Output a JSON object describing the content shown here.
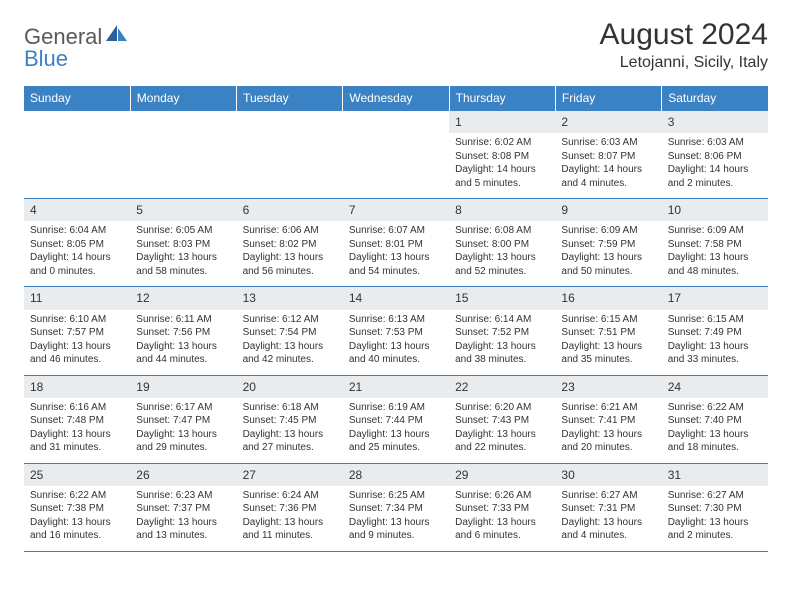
{
  "brand": {
    "part1": "General",
    "part2": "Blue"
  },
  "title": "August 2024",
  "location": "Letojanni, Sicily, Italy",
  "colors": {
    "header_bg": "#3b82c4",
    "header_text": "#ffffff",
    "daynum_bg": "#e9ecef",
    "border": "#3b82c4",
    "text": "#333333",
    "logo_gray": "#5a5a5a",
    "logo_blue": "#3b82c4",
    "page_bg": "#ffffff"
  },
  "typography": {
    "title_fontsize": 30,
    "location_fontsize": 16,
    "weekday_fontsize": 12,
    "daynum_fontsize": 12,
    "cell_fontsize": 10
  },
  "weekdays": [
    "Sunday",
    "Monday",
    "Tuesday",
    "Wednesday",
    "Thursday",
    "Friday",
    "Saturday"
  ],
  "weeks": [
    [
      null,
      null,
      null,
      null,
      {
        "day": "1",
        "sunrise": "Sunrise: 6:02 AM",
        "sunset": "Sunset: 8:08 PM",
        "daylight": "Daylight: 14 hours and 5 minutes."
      },
      {
        "day": "2",
        "sunrise": "Sunrise: 6:03 AM",
        "sunset": "Sunset: 8:07 PM",
        "daylight": "Daylight: 14 hours and 4 minutes."
      },
      {
        "day": "3",
        "sunrise": "Sunrise: 6:03 AM",
        "sunset": "Sunset: 8:06 PM",
        "daylight": "Daylight: 14 hours and 2 minutes."
      }
    ],
    [
      {
        "day": "4",
        "sunrise": "Sunrise: 6:04 AM",
        "sunset": "Sunset: 8:05 PM",
        "daylight": "Daylight: 14 hours and 0 minutes."
      },
      {
        "day": "5",
        "sunrise": "Sunrise: 6:05 AM",
        "sunset": "Sunset: 8:03 PM",
        "daylight": "Daylight: 13 hours and 58 minutes."
      },
      {
        "day": "6",
        "sunrise": "Sunrise: 6:06 AM",
        "sunset": "Sunset: 8:02 PM",
        "daylight": "Daylight: 13 hours and 56 minutes."
      },
      {
        "day": "7",
        "sunrise": "Sunrise: 6:07 AM",
        "sunset": "Sunset: 8:01 PM",
        "daylight": "Daylight: 13 hours and 54 minutes."
      },
      {
        "day": "8",
        "sunrise": "Sunrise: 6:08 AM",
        "sunset": "Sunset: 8:00 PM",
        "daylight": "Daylight: 13 hours and 52 minutes."
      },
      {
        "day": "9",
        "sunrise": "Sunrise: 6:09 AM",
        "sunset": "Sunset: 7:59 PM",
        "daylight": "Daylight: 13 hours and 50 minutes."
      },
      {
        "day": "10",
        "sunrise": "Sunrise: 6:09 AM",
        "sunset": "Sunset: 7:58 PM",
        "daylight": "Daylight: 13 hours and 48 minutes."
      }
    ],
    [
      {
        "day": "11",
        "sunrise": "Sunrise: 6:10 AM",
        "sunset": "Sunset: 7:57 PM",
        "daylight": "Daylight: 13 hours and 46 minutes."
      },
      {
        "day": "12",
        "sunrise": "Sunrise: 6:11 AM",
        "sunset": "Sunset: 7:56 PM",
        "daylight": "Daylight: 13 hours and 44 minutes."
      },
      {
        "day": "13",
        "sunrise": "Sunrise: 6:12 AM",
        "sunset": "Sunset: 7:54 PM",
        "daylight": "Daylight: 13 hours and 42 minutes."
      },
      {
        "day": "14",
        "sunrise": "Sunrise: 6:13 AM",
        "sunset": "Sunset: 7:53 PM",
        "daylight": "Daylight: 13 hours and 40 minutes."
      },
      {
        "day": "15",
        "sunrise": "Sunrise: 6:14 AM",
        "sunset": "Sunset: 7:52 PM",
        "daylight": "Daylight: 13 hours and 38 minutes."
      },
      {
        "day": "16",
        "sunrise": "Sunrise: 6:15 AM",
        "sunset": "Sunset: 7:51 PM",
        "daylight": "Daylight: 13 hours and 35 minutes."
      },
      {
        "day": "17",
        "sunrise": "Sunrise: 6:15 AM",
        "sunset": "Sunset: 7:49 PM",
        "daylight": "Daylight: 13 hours and 33 minutes."
      }
    ],
    [
      {
        "day": "18",
        "sunrise": "Sunrise: 6:16 AM",
        "sunset": "Sunset: 7:48 PM",
        "daylight": "Daylight: 13 hours and 31 minutes."
      },
      {
        "day": "19",
        "sunrise": "Sunrise: 6:17 AM",
        "sunset": "Sunset: 7:47 PM",
        "daylight": "Daylight: 13 hours and 29 minutes."
      },
      {
        "day": "20",
        "sunrise": "Sunrise: 6:18 AM",
        "sunset": "Sunset: 7:45 PM",
        "daylight": "Daylight: 13 hours and 27 minutes."
      },
      {
        "day": "21",
        "sunrise": "Sunrise: 6:19 AM",
        "sunset": "Sunset: 7:44 PM",
        "daylight": "Daylight: 13 hours and 25 minutes."
      },
      {
        "day": "22",
        "sunrise": "Sunrise: 6:20 AM",
        "sunset": "Sunset: 7:43 PM",
        "daylight": "Daylight: 13 hours and 22 minutes."
      },
      {
        "day": "23",
        "sunrise": "Sunrise: 6:21 AM",
        "sunset": "Sunset: 7:41 PM",
        "daylight": "Daylight: 13 hours and 20 minutes."
      },
      {
        "day": "24",
        "sunrise": "Sunrise: 6:22 AM",
        "sunset": "Sunset: 7:40 PM",
        "daylight": "Daylight: 13 hours and 18 minutes."
      }
    ],
    [
      {
        "day": "25",
        "sunrise": "Sunrise: 6:22 AM",
        "sunset": "Sunset: 7:38 PM",
        "daylight": "Daylight: 13 hours and 16 minutes."
      },
      {
        "day": "26",
        "sunrise": "Sunrise: 6:23 AM",
        "sunset": "Sunset: 7:37 PM",
        "daylight": "Daylight: 13 hours and 13 minutes."
      },
      {
        "day": "27",
        "sunrise": "Sunrise: 6:24 AM",
        "sunset": "Sunset: 7:36 PM",
        "daylight": "Daylight: 13 hours and 11 minutes."
      },
      {
        "day": "28",
        "sunrise": "Sunrise: 6:25 AM",
        "sunset": "Sunset: 7:34 PM",
        "daylight": "Daylight: 13 hours and 9 minutes."
      },
      {
        "day": "29",
        "sunrise": "Sunrise: 6:26 AM",
        "sunset": "Sunset: 7:33 PM",
        "daylight": "Daylight: 13 hours and 6 minutes."
      },
      {
        "day": "30",
        "sunrise": "Sunrise: 6:27 AM",
        "sunset": "Sunset: 7:31 PM",
        "daylight": "Daylight: 13 hours and 4 minutes."
      },
      {
        "day": "31",
        "sunrise": "Sunrise: 6:27 AM",
        "sunset": "Sunset: 7:30 PM",
        "daylight": "Daylight: 13 hours and 2 minutes."
      }
    ]
  ]
}
